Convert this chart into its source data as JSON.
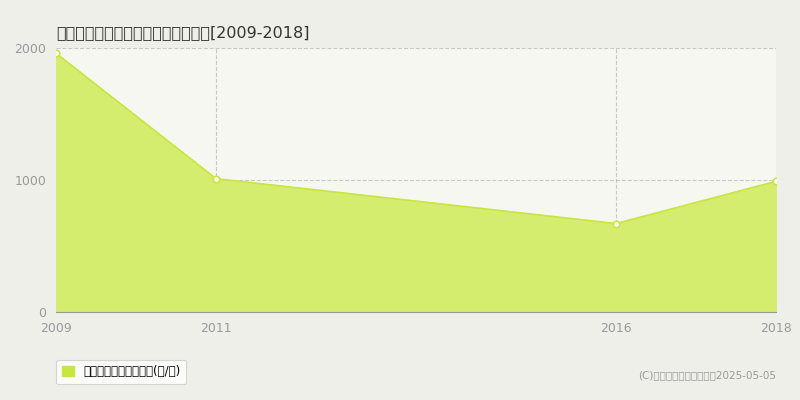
{
  "title": "たつの市捨西町笹原　林地価格推移[2009-2018]",
  "years": [
    2009,
    2011,
    2016,
    2018
  ],
  "values": [
    1960,
    1010,
    670,
    990
  ],
  "line_color": "#c8e640",
  "fill_color": "#d4ed6e",
  "marker_color": "#c8e640",
  "marker_face": "#ffffff",
  "fig_bg_color": "#efefea",
  "plot_bg_color": "#f7f7f2",
  "xlim": [
    2009,
    2018
  ],
  "ylim": [
    0,
    2000
  ],
  "yticks": [
    0,
    1000,
    2000
  ],
  "xticks": [
    2009,
    2011,
    2016,
    2018
  ],
  "grid_color": "#aaaaaa",
  "vgrid_years": [
    2011,
    2016
  ],
  "legend_label": "林地価格　平均坪単価(円/坪)",
  "copyright_text": "(C)土地価格ドットコム　2025-05-05",
  "title_color": "#333333",
  "axis_color": "#999999",
  "tick_color": "#999999",
  "tick_fontsize": 9,
  "title_fontsize": 11.5,
  "legend_fontsize": 8.5,
  "copyright_fontsize": 7.5
}
